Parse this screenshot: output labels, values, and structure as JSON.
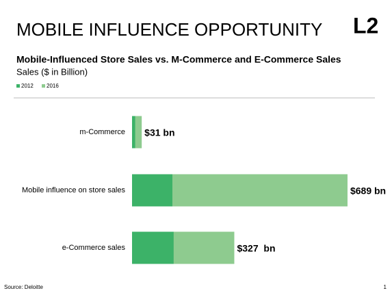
{
  "logo": "L2",
  "chart_data": {
    "type": "bar",
    "orientation": "horizontal",
    "overlap": true,
    "title": "MOBILE INFLUENCE OPPORTUNITY",
    "subtitle": "Mobile-Influenced Store Sales vs. M-Commerce and E-Commerce Sales",
    "unit_label": "Sales ($ in Billion)",
    "categories": [
      "m-Commerce",
      "Mobile influence on store sales",
      "e-Commerce sales"
    ],
    "series": [
      {
        "name": "2012",
        "color": "#3cb268",
        "values": [
          10,
          129,
          133
        ]
      },
      {
        "name": "2016",
        "color": "#8ecb8f",
        "values": [
          31,
          689,
          327
        ],
        "value_labels": [
          "$31 bn",
          "$689 bn",
          "$327  bn"
        ]
      }
    ],
    "xlim": [
      0,
      700
    ],
    "source": "Source: Deloitte",
    "page_number": "1"
  }
}
